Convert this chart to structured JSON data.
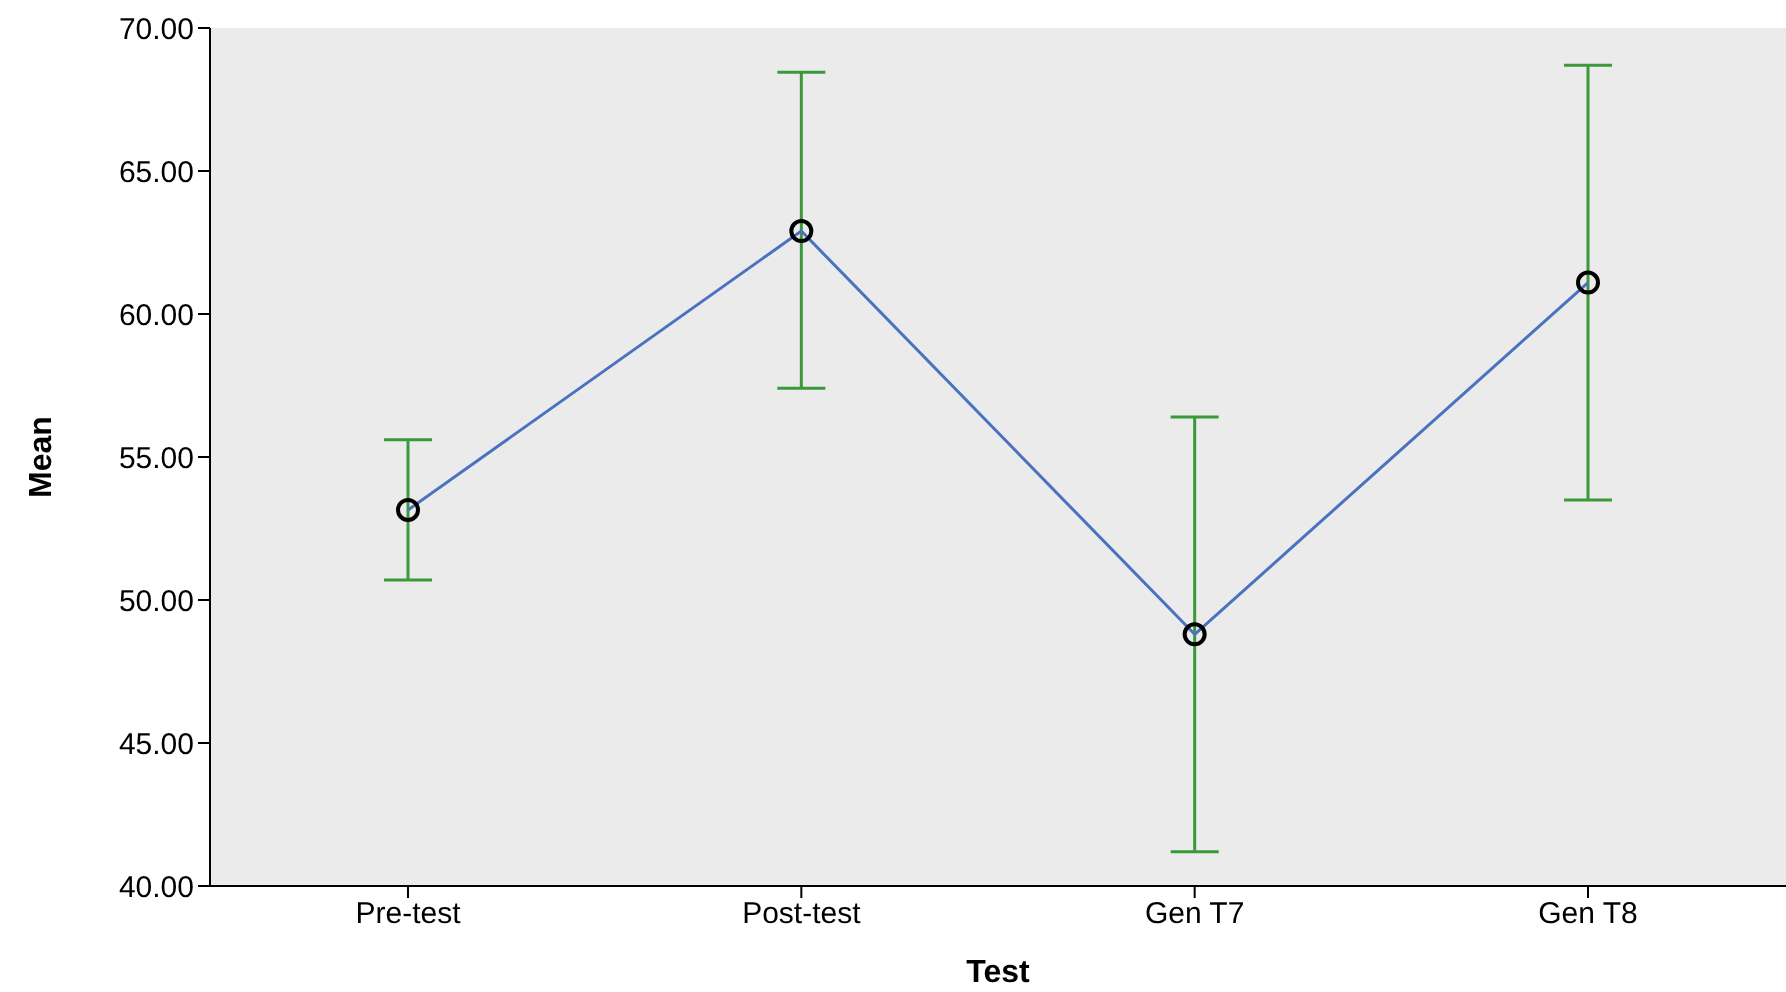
{
  "chart_data": {
    "type": "line",
    "xlabel": "Test",
    "ylabel": "Mean",
    "categories": [
      "Pre-test",
      "Post-test",
      "Gen T7",
      "Gen T8"
    ],
    "series": [
      {
        "color": "#4a72c0",
        "values": [
          53.15,
          62.9,
          48.8,
          61.1
        ],
        "errors": [
          [
            50.7,
            55.6
          ],
          [
            57.4,
            68.45
          ],
          [
            41.2,
            56.4
          ],
          [
            53.5,
            68.7
          ]
        ]
      }
    ],
    "ylim": [
      40,
      70
    ],
    "yticks": [
      {
        "value": 40,
        "label": "40.00"
      },
      {
        "value": 45,
        "label": "45.00"
      },
      {
        "value": 50,
        "label": "50.00"
      },
      {
        "value": 55,
        "label": "55.00"
      },
      {
        "value": 60,
        "label": "60.00"
      },
      {
        "value": 65,
        "label": "65.00"
      },
      {
        "value": 70,
        "label": "70.00"
      }
    ],
    "marker": "circle",
    "line_style": "solid",
    "legend": false,
    "grid": false
  }
}
